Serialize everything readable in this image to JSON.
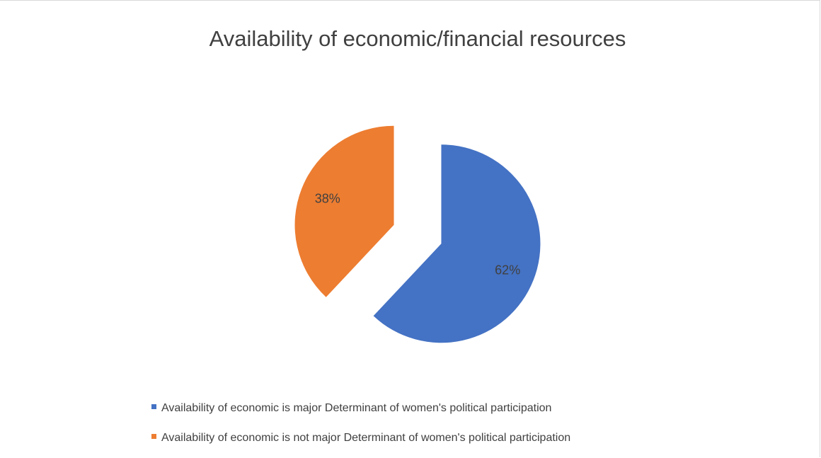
{
  "chart_data": {
    "type": "pie",
    "title": "Availability of economic/financial resources",
    "slices": [
      {
        "label": "Availability of economic is major Determinant of women's political participation",
        "value": 62,
        "display": "62%",
        "color": "#4472C4"
      },
      {
        "label": "Availability of economic is not major Determinant of women's political participation",
        "value": 38,
        "display": "38%",
        "color": "#ED7D31"
      }
    ],
    "legend_position": "bottom",
    "exploded": true
  }
}
